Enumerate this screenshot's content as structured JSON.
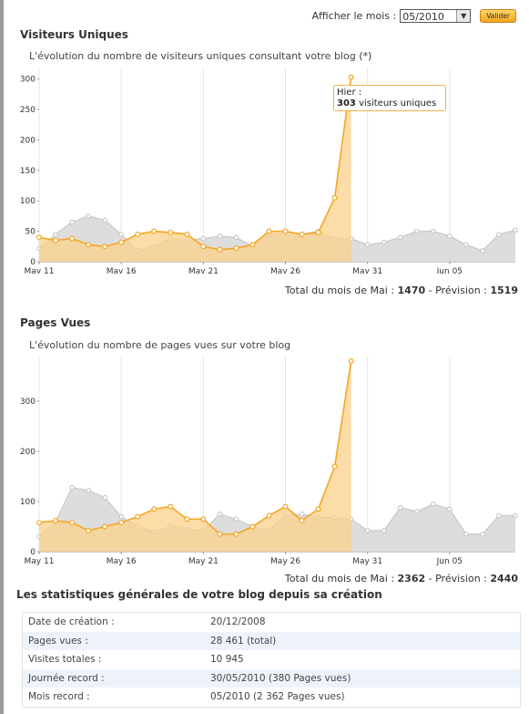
{
  "header": {
    "month_label": "Afficher le mois :",
    "month_value": "05/2010",
    "submit_label": "Valider"
  },
  "visitors": {
    "title": "Visiteurs Uniques",
    "subtitle": "L'évolution du nombre de visiteurs uniques consultant votre blog",
    "asterisk": "(*)",
    "tooltip_line1": "Hier :",
    "tooltip_value": "303",
    "tooltip_suffix": "visiteurs uniques",
    "total_prefix": "Total du mois de Mai :",
    "total_value": "1470",
    "forecast_prefix": "- Prévision :",
    "forecast_value": "1519"
  },
  "pageviews": {
    "title": "Pages Vues",
    "subtitle": "L'évolution du nombre de pages vues sur votre blog",
    "total_prefix": "Total du mois de Mai :",
    "total_value": "2362",
    "forecast_prefix": "- Prévision :",
    "forecast_value": "2440"
  },
  "stats": {
    "title": "Les statistiques générales de votre blog depuis sa création",
    "rows": [
      {
        "key": "Date de création :",
        "value": "20/12/2008"
      },
      {
        "key": "Pages vues :",
        "value": "28 461 (total)"
      },
      {
        "key": "Visites totales :",
        "value": "10 945"
      },
      {
        "key": "Journée record :",
        "value": "30/05/2010 (380 Pages vues)"
      },
      {
        "key": "Mois record :",
        "value": "05/2010 (2 362 Pages vues)"
      }
    ]
  },
  "colors": {
    "current": "#f5a623",
    "current_fill": "#fbd08a",
    "previous": "#c9c9c9",
    "previous_fill": "#d9d9d9",
    "grid": "#e6e6e6"
  },
  "chart_data": [
    {
      "type": "area",
      "x_tick_labels": [
        "May 11",
        "May 16",
        "May 21",
        "May 26",
        "May 31",
        "Jun 05"
      ],
      "ylim": [
        0,
        310
      ],
      "y_ticks": [
        0,
        50,
        100,
        150,
        200,
        250,
        300
      ],
      "grid": true,
      "series": [
        {
          "name": "",
          "color": "#f5a623",
          "values": [
            40,
            35,
            38,
            28,
            25,
            32,
            45,
            50,
            48,
            45,
            25,
            20,
            22,
            28,
            50,
            50,
            45,
            48,
            105,
            303
          ]
        },
        {
          "name": "",
          "color": "#c9c9c9",
          "values": [
            22,
            45,
            65,
            75,
            68,
            45,
            18,
            25,
            38,
            35,
            38,
            42,
            40,
            25,
            45,
            48,
            45,
            50,
            38,
            38,
            28,
            32,
            40,
            50,
            50,
            42,
            28,
            18,
            45,
            52
          ]
        }
      ]
    },
    {
      "type": "area",
      "x_tick_labels": [
        "May 11",
        "May 16",
        "May 21",
        "May 26",
        "May 31",
        "Jun 05"
      ],
      "ylim": [
        0,
        380
      ],
      "y_ticks": [
        0,
        100,
        200,
        300
      ],
      "grid": true,
      "series": [
        {
          "name": "",
          "color": "#f5a623",
          "values": [
            58,
            62,
            58,
            42,
            50,
            58,
            70,
            85,
            90,
            65,
            65,
            35,
            35,
            50,
            72,
            90,
            62,
            85,
            170,
            380
          ]
        },
        {
          "name": "",
          "color": "#c9c9c9",
          "values": [
            30,
            60,
            128,
            122,
            108,
            70,
            50,
            40,
            50,
            45,
            42,
            75,
            65,
            50,
            42,
            72,
            75,
            68,
            68,
            65,
            42,
            42,
            88,
            80,
            95,
            85,
            35,
            35,
            72,
            72
          ]
        }
      ]
    }
  ]
}
